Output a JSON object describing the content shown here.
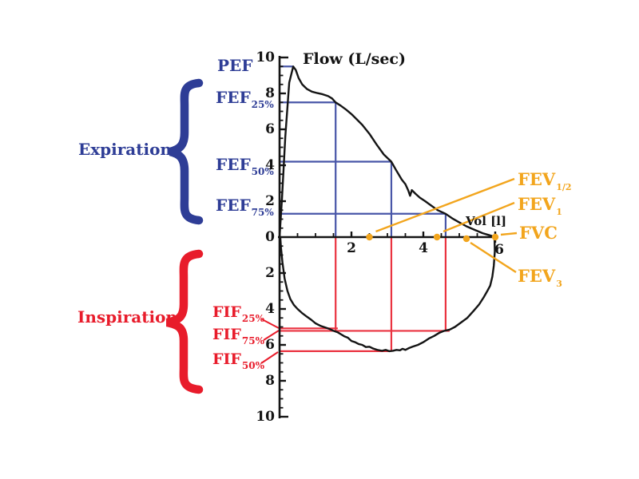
{
  "header": {
    "flow_axis_title": "Flow (L/sec)",
    "volume_axis_title": "Vol [l]"
  },
  "expiration": {
    "group_label": "Expiration",
    "pef_label": "PEF",
    "items": [
      {
        "main": "FEF",
        "sub": "25%"
      },
      {
        "main": "FEF",
        "sub": "50%"
      },
      {
        "main": "FEF",
        "sub": "75%"
      }
    ]
  },
  "inspiration": {
    "group_label": "Inspiration",
    "items": [
      {
        "main": "FIF",
        "sub": "25%"
      },
      {
        "main": "FIF",
        "sub": "75%"
      },
      {
        "main": "FIF",
        "sub": "50%"
      }
    ]
  },
  "fev_labels": [
    {
      "main": "FEV",
      "sub": "1/2"
    },
    {
      "main": "FEV",
      "sub": "1"
    },
    {
      "main": "FVC",
      "sub": ""
    },
    {
      "main": "FEV",
      "sub": "3"
    }
  ],
  "colors": {
    "expiration_blue": "#2e3d96",
    "blue_line": "#4856a8",
    "inspiration_red": "#e81c2b",
    "red_line": "#ea3340",
    "marker_orange": "#f2a51d",
    "curve_black": "#141414"
  },
  "chart_data": {
    "type": "line",
    "title": "Flow (L/sec)",
    "xlabel": "Vol [l]",
    "ylabel": "Flow (L/sec)",
    "xlim": [
      0,
      6.2
    ],
    "ylim": [
      -10,
      10
    ],
    "x_major_ticks": [
      2,
      4,
      6
    ],
    "x_minor_step": 0.5,
    "y_major_ticks": [
      -10,
      -8,
      -6,
      -4,
      -2,
      0,
      2,
      4,
      6,
      8,
      10
    ],
    "y_minor_step": 0.5,
    "grid": false,
    "series": [
      {
        "name": "expiration",
        "color": "#141414",
        "points": [
          [
            0,
            0
          ],
          [
            0.07,
            2.2
          ],
          [
            0.16,
            5.6
          ],
          [
            0.27,
            8.6
          ],
          [
            0.38,
            9.5
          ],
          [
            0.45,
            9.3
          ],
          [
            0.53,
            8.85
          ],
          [
            0.63,
            8.5
          ],
          [
            0.76,
            8.25
          ],
          [
            0.9,
            8.1
          ],
          [
            1.05,
            8.02
          ],
          [
            1.2,
            7.95
          ],
          [
            1.35,
            7.85
          ],
          [
            1.46,
            7.72
          ],
          [
            1.56,
            7.5
          ],
          [
            1.7,
            7.32
          ],
          [
            1.85,
            7.1
          ],
          [
            2.0,
            6.85
          ],
          [
            2.15,
            6.55
          ],
          [
            2.3,
            6.25
          ],
          [
            2.5,
            5.75
          ],
          [
            2.7,
            5.15
          ],
          [
            2.9,
            4.6
          ],
          [
            3.11,
            4.2
          ],
          [
            3.25,
            3.7
          ],
          [
            3.4,
            3.2
          ],
          [
            3.5,
            2.95
          ],
          [
            3.58,
            2.6
          ],
          [
            3.63,
            2.3
          ],
          [
            3.68,
            2.62
          ],
          [
            3.78,
            2.42
          ],
          [
            3.9,
            2.2
          ],
          [
            4.05,
            2.0
          ],
          [
            4.2,
            1.78
          ],
          [
            4.4,
            1.5
          ],
          [
            4.62,
            1.3
          ],
          [
            4.8,
            1.05
          ],
          [
            5.0,
            0.82
          ],
          [
            5.2,
            0.6
          ],
          [
            5.45,
            0.38
          ],
          [
            5.65,
            0.22
          ],
          [
            5.85,
            0.1
          ],
          [
            5.98,
            0.02
          ]
        ]
      },
      {
        "name": "inspiration",
        "color": "#141414",
        "points": [
          [
            5.98,
            0.02
          ],
          [
            5.99,
            -0.8
          ],
          [
            5.96,
            -1.6
          ],
          [
            5.92,
            -2.2
          ],
          [
            5.86,
            -2.7
          ],
          [
            5.78,
            -3.0
          ],
          [
            5.68,
            -3.35
          ],
          [
            5.55,
            -3.75
          ],
          [
            5.4,
            -4.1
          ],
          [
            5.22,
            -4.5
          ],
          [
            5.05,
            -4.75
          ],
          [
            4.88,
            -5.0
          ],
          [
            4.73,
            -5.15
          ],
          [
            4.58,
            -5.22
          ],
          [
            4.45,
            -5.32
          ],
          [
            4.3,
            -5.5
          ],
          [
            4.15,
            -5.65
          ],
          [
            4.0,
            -5.85
          ],
          [
            3.85,
            -6.0
          ],
          [
            3.7,
            -6.1
          ],
          [
            3.6,
            -6.18
          ],
          [
            3.5,
            -6.28
          ],
          [
            3.42,
            -6.22
          ],
          [
            3.35,
            -6.3
          ],
          [
            3.25,
            -6.28
          ],
          [
            3.15,
            -6.33
          ],
          [
            3.05,
            -6.35
          ],
          [
            2.95,
            -6.28
          ],
          [
            2.85,
            -6.33
          ],
          [
            2.72,
            -6.28
          ],
          [
            2.6,
            -6.2
          ],
          [
            2.5,
            -6.1
          ],
          [
            2.4,
            -6.12
          ],
          [
            2.3,
            -6.0
          ],
          [
            2.2,
            -5.95
          ],
          [
            2.1,
            -5.85
          ],
          [
            2.0,
            -5.78
          ],
          [
            1.9,
            -5.6
          ],
          [
            1.8,
            -5.52
          ],
          [
            1.7,
            -5.4
          ],
          [
            1.62,
            -5.3
          ],
          [
            1.5,
            -5.22
          ],
          [
            1.4,
            -5.12
          ],
          [
            1.3,
            -5.05
          ],
          [
            1.15,
            -4.95
          ],
          [
            1.0,
            -4.8
          ],
          [
            0.88,
            -4.6
          ],
          [
            0.75,
            -4.42
          ],
          [
            0.62,
            -4.22
          ],
          [
            0.5,
            -4.0
          ],
          [
            0.4,
            -3.78
          ],
          [
            0.3,
            -3.45
          ],
          [
            0.22,
            -3.0
          ],
          [
            0.14,
            -2.3
          ],
          [
            0.08,
            -1.4
          ],
          [
            0.04,
            -0.6
          ],
          [
            0.02,
            0
          ]
        ]
      }
    ],
    "expiration_markers": [
      {
        "name": "PEF",
        "flow": 9.5,
        "volume": 0.38,
        "horizontal_only": true
      },
      {
        "name": "FEF25%",
        "flow": 7.5,
        "volume": 1.56,
        "red_down_to": -5.25
      },
      {
        "name": "FEF50%",
        "flow": 4.2,
        "volume": 3.11,
        "red_down_to": -6.33
      },
      {
        "name": "FEF75%",
        "flow": 1.3,
        "volume": 4.62,
        "red_down_to": -5.18
      }
    ],
    "inspiration_markers": [
      {
        "name": "FIF25%",
        "flow": -5.08,
        "volume": 1.62
      },
      {
        "name": "FIF75%",
        "flow": -5.22,
        "volume": 4.73
      },
      {
        "name": "FIF50%",
        "flow": -6.35,
        "volume": 3.08
      }
    ],
    "volume_points": [
      {
        "name": "FEV1/2",
        "volume": 2.5
      },
      {
        "name": "FEV1",
        "volume": 4.38
      },
      {
        "name": "FEV3",
        "volume": 5.2
      },
      {
        "name": "FVC",
        "volume": 6.0
      }
    ]
  }
}
